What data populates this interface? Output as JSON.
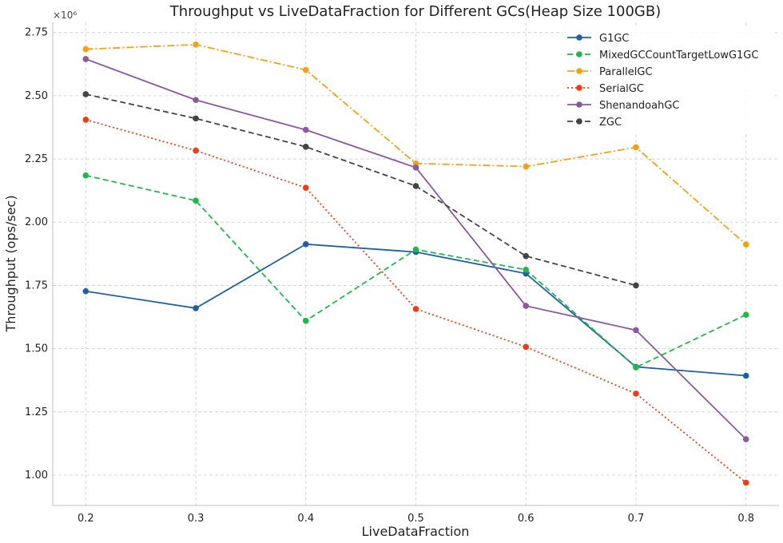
{
  "chart_data": {
    "type": "line",
    "title": "Throughput vs LiveDataFraction for Different GCs(Heap Size 100GB)",
    "xlabel": "LiveDataFraction",
    "ylabel": "Throughput (ops/sec)",
    "y_scale_label": "×10⁶",
    "x": [
      0.2,
      0.3,
      0.4,
      0.5,
      0.6,
      0.7,
      0.8
    ],
    "x_tick_labels": [
      "0.2",
      "0.3",
      "0.4",
      "0.5",
      "0.6",
      "0.7",
      "0.8"
    ],
    "y_ticks": [
      1.0,
      1.25,
      1.5,
      1.75,
      2.0,
      2.25,
      2.5,
      2.75
    ],
    "y_tick_labels": [
      "1.00",
      "1.25",
      "1.50",
      "1.75",
      "2.00",
      "2.25",
      "2.50",
      "2.75"
    ],
    "xlim": [
      0.17,
      0.83
    ],
    "ylim": [
      0.88,
      2.79
    ],
    "grid": true,
    "legend_position": "top-right",
    "series": [
      {
        "name": "G1GC",
        "color": "#1f5fa6",
        "dash": "solid",
        "values": [
          1.727,
          1.66,
          1.913,
          1.882,
          1.797,
          1.428,
          1.393
        ]
      },
      {
        "name": "MixedGCCountTargetLowG1GC",
        "color": "#1fb84a",
        "dash": "dashed",
        "values": [
          2.185,
          2.085,
          1.61,
          1.892,
          1.812,
          1.426,
          1.634
        ]
      },
      {
        "name": "ParallelGC",
        "color": "#f5a010",
        "dash": "dashdot",
        "values": [
          2.684,
          2.702,
          2.602,
          2.232,
          2.22,
          2.296,
          1.912
        ]
      },
      {
        "name": "SerialGC",
        "color": "#f03c14",
        "dash": "dotted",
        "values": [
          2.405,
          2.283,
          2.136,
          1.657,
          1.507,
          1.322,
          0.97
        ]
      },
      {
        "name": "ShenandoahGC",
        "color": "#8a5aa0",
        "dash": "solid",
        "values": [
          2.645,
          2.483,
          2.365,
          2.216,
          1.669,
          1.573,
          1.142
        ]
      },
      {
        "name": "ZGC",
        "color": "#444444",
        "dash": "dashed",
        "values": [
          2.506,
          2.41,
          2.298,
          2.143,
          1.866,
          1.75,
          null
        ]
      }
    ]
  }
}
